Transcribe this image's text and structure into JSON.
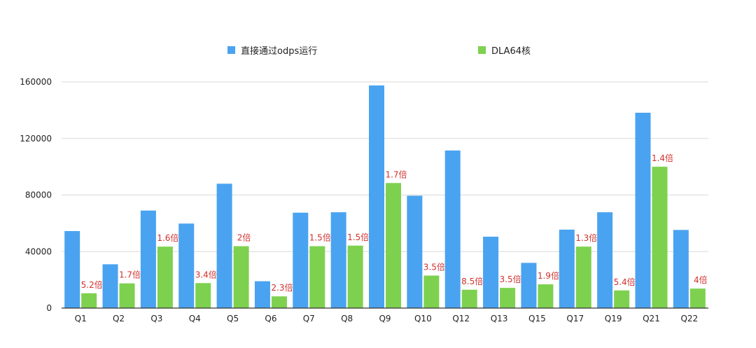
{
  "chart_data": {
    "type": "bar",
    "title": "",
    "xlabel": "",
    "ylabel": "",
    "ylim": [
      0,
      160000
    ],
    "yticks": [
      0,
      40000,
      80000,
      120000,
      160000
    ],
    "grid": true,
    "legend_position": "top",
    "categories": [
      "Q1",
      "Q2",
      "Q3",
      "Q4",
      "Q5",
      "Q6",
      "Q7",
      "Q8",
      "Q9",
      "Q10",
      "Q12",
      "Q13",
      "Q15",
      "Q17",
      "Q19",
      "Q21",
      "Q22"
    ],
    "series": [
      {
        "name": "直接通过odps运行",
        "color": "#4aa3f0",
        "values": [
          54500,
          31000,
          69000,
          59800,
          88000,
          19000,
          67500,
          67800,
          157500,
          79500,
          111500,
          50500,
          32000,
          55500,
          67800,
          138200,
          55300
        ]
      },
      {
        "name": "DLA64核",
        "color": "#7ed14f",
        "values": [
          10500,
          17500,
          43500,
          17700,
          43800,
          8300,
          43800,
          44200,
          88500,
          23000,
          13000,
          14300,
          16800,
          43500,
          12500,
          100000,
          13800
        ]
      }
    ],
    "annotations": [
      "5.2倍",
      "1.7倍",
      "1.6倍",
      "3.4倍",
      "2倍",
      "2.3倍",
      "1.5倍",
      "1.5倍",
      "1.7倍",
      "3.5倍",
      "8.5倍",
      "3.5倍",
      "1.9倍",
      "1.3倍",
      "5.4倍",
      "1.4倍",
      "4倍"
    ],
    "annotation_color": "#d0312d"
  }
}
